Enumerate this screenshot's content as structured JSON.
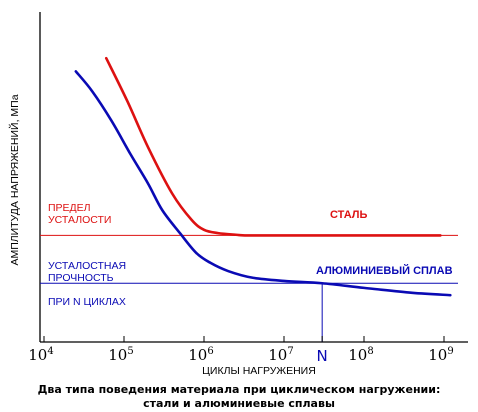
{
  "chart_data": {
    "type": "line",
    "title": "",
    "xlabel": "ЦИКЛЫ НАГРУЖЕНИЯ",
    "ylabel": "АМПЛИТУДА НАПРЯЖЕНИЙ, МПа",
    "x_scale": "log",
    "xlim": [
      10000,
      1000000000
    ],
    "ylim": [
      0,
      100
    ],
    "x_ticks": [
      {
        "value": 10000,
        "base": "10",
        "exp": "4"
      },
      {
        "value": 100000,
        "base": "10",
        "exp": "5"
      },
      {
        "value": 1000000,
        "base": "10",
        "exp": "6"
      },
      {
        "value": 10000000,
        "base": "10",
        "exp": "7"
      },
      {
        "value": 100000000,
        "base": "10",
        "exp": "8"
      },
      {
        "value": 1000000000,
        "base": "10",
        "exp": "9"
      }
    ],
    "n_marker": {
      "label": "N",
      "x": 30000000
    },
    "series": [
      {
        "name": "СТАЛЬ",
        "color": "#dd1111",
        "points": [
          [
            60000,
            86
          ],
          [
            110000,
            73
          ],
          [
            200000,
            59
          ],
          [
            400000,
            45
          ],
          [
            700000,
            37
          ],
          [
            1000000,
            34
          ],
          [
            1500000,
            33
          ],
          [
            2500000,
            32.5
          ],
          [
            3500000,
            32.3
          ],
          [
            10000000,
            32.3
          ],
          [
            100000000,
            32.3
          ],
          [
            900000000,
            32.3
          ]
        ]
      },
      {
        "name": "АЛЮМИНИЕВЫЙ СПЛАВ",
        "color": "#0a0ab4",
        "points": [
          [
            25000,
            82
          ],
          [
            40000,
            76
          ],
          [
            70000,
            67
          ],
          [
            120000,
            57
          ],
          [
            200000,
            48
          ],
          [
            300000,
            40
          ],
          [
            500000,
            33
          ],
          [
            800000,
            27
          ],
          [
            1200000,
            24
          ],
          [
            2000000,
            21.5
          ],
          [
            4000000,
            19.5
          ],
          [
            10000000,
            18.5
          ],
          [
            30000000,
            17.8
          ],
          [
            100000000,
            16.4
          ],
          [
            400000000,
            14.9
          ],
          [
            1200000000,
            14.2
          ]
        ]
      }
    ],
    "reference_lines": [
      {
        "y": 32.3,
        "color": "#dd1111",
        "label_lines": [
          "ПРЕДЕЛ",
          "УСТАЛОСТИ"
        ]
      },
      {
        "y": 17.8,
        "color": "#0a0ab4",
        "label_lines": [
          "УСТАЛОСТНАЯ",
          "ПРОЧНОСТЬ",
          "ПРИ N ЦИКЛАХ"
        ]
      }
    ],
    "grid": false,
    "legend": "inline labels"
  },
  "caption": {
    "line1": "Два типа поведения материала при циклическом нагружении:",
    "line2": "стали и алюминиевые сплавы"
  }
}
